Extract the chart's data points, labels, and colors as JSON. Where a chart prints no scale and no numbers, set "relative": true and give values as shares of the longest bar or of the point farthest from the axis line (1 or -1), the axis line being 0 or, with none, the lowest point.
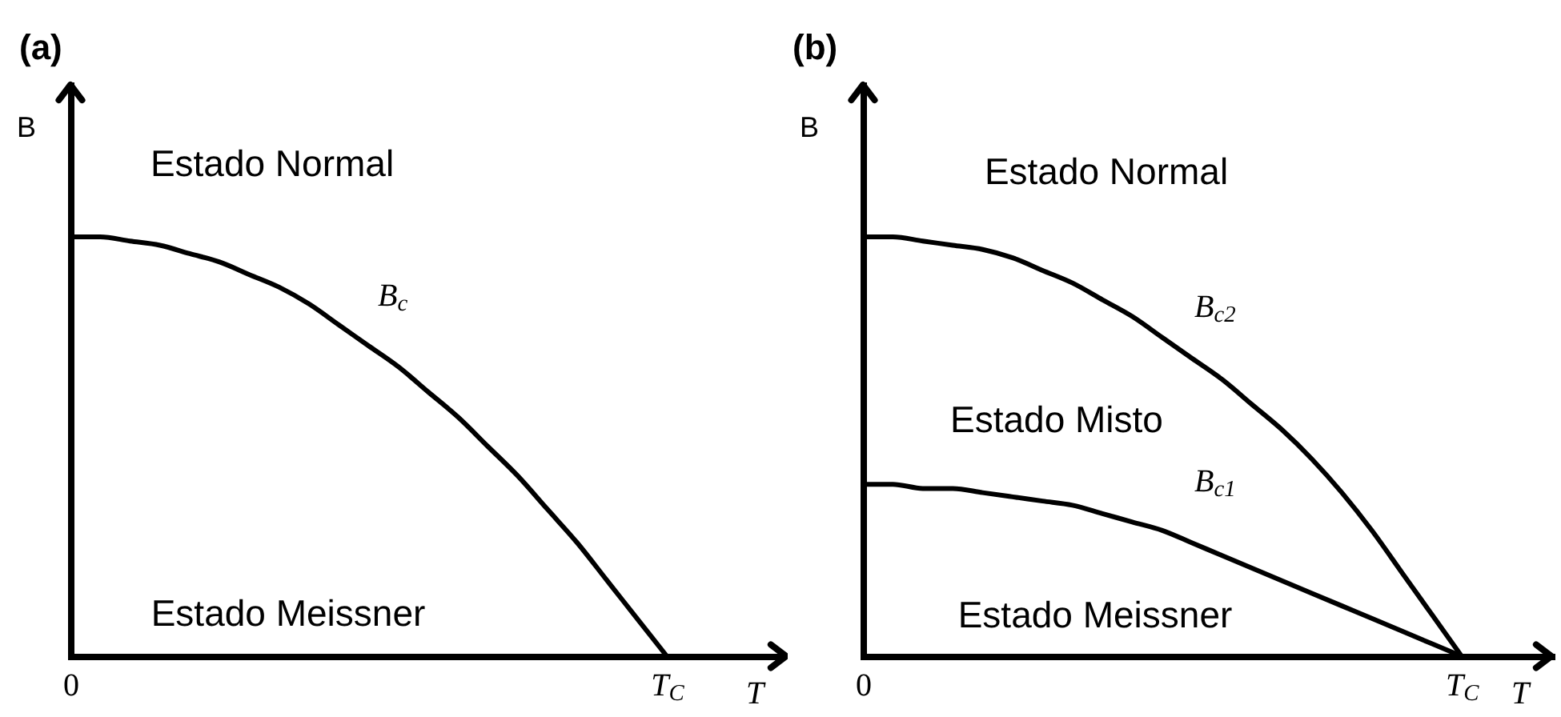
{
  "chart_data": [
    {
      "type": "line",
      "title": "(a)",
      "xlabel": "T",
      "ylabel": "B",
      "relative": true,
      "categories": [
        "0",
        null,
        null,
        null,
        null,
        null,
        null,
        null,
        null,
        null,
        null,
        null,
        null,
        null,
        null,
        null,
        null,
        null,
        null,
        null,
        "T$_{C}$",
        null,
        null,
        null,
        null
      ],
      "series": [
        {
          "name": "B$_{c}$",
          "color": "#000000",
          "values": [
            1,
            1,
            0.99,
            0.98,
            0.96,
            0.94,
            0.91,
            0.88,
            0.84,
            0.79,
            0.74,
            0.69,
            0.63,
            0.57,
            0.5,
            0.43,
            0.35,
            0.27,
            0.18,
            0.09,
            0,
            null,
            null,
            null,
            null
          ]
        }
      ],
      "annotations": [
        "Estado Normal",
        "Estado Meissner"
      ]
    },
    {
      "type": "line",
      "title": "(b)",
      "xlabel": "T",
      "ylabel": "B",
      "relative": true,
      "categories": [
        "0",
        null,
        null,
        null,
        null,
        null,
        null,
        null,
        null,
        null,
        null,
        null,
        null,
        null,
        null,
        null,
        null,
        null,
        null,
        null,
        "T$_{C}$",
        null,
        null,
        null
      ],
      "series": [
        {
          "name": "B$_{c2}$",
          "color": "#000000",
          "values": [
            1,
            1,
            0.99,
            0.98,
            0.97,
            0.95,
            0.92,
            0.89,
            0.85,
            0.81,
            0.76,
            0.71,
            0.66,
            0.6,
            0.54,
            0.47,
            0.39,
            0.3,
            0.2,
            0.1,
            0,
            null,
            null,
            null
          ]
        },
        {
          "name": "B$_{c1}$",
          "color": "#000000",
          "values": [
            0.41,
            0.41,
            0.4,
            0.4,
            0.39,
            0.38,
            0.37,
            0.36,
            0.34,
            0.32,
            0.3,
            0.27,
            0.24,
            0.21,
            0.18,
            0.15,
            0.12,
            0.09,
            0.06,
            0.03,
            0,
            null,
            null,
            null
          ]
        }
      ],
      "annotations": [
        "Estado Normal",
        "Estado Misto",
        "Estado Meissner"
      ]
    }
  ]
}
